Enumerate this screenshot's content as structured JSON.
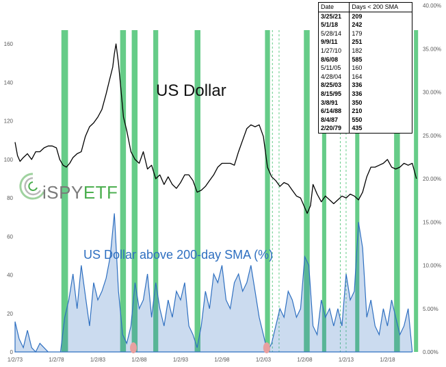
{
  "chart_data": [
    {
      "type": "line",
      "title": "US Dollar",
      "series": [
        {
          "name": "US Dollar",
          "x": [
            1973.0,
            1973.3,
            1973.6,
            1974.0,
            1974.5,
            1975.0,
            1975.5,
            1976.0,
            1976.5,
            1977.0,
            1977.5,
            1978.0,
            1978.4,
            1978.8,
            1979.2,
            1979.6,
            1980.0,
            1980.5,
            1981.0,
            1981.5,
            1982.0,
            1982.5,
            1983.0,
            1983.5,
            1984.0,
            1984.4,
            1984.8,
            1985.0,
            1985.2,
            1985.5,
            1985.8,
            1986.1,
            1986.5,
            1987.0,
            1987.5,
            1988.0,
            1988.5,
            1989.0,
            1989.5,
            1990.0,
            1990.5,
            1991.0,
            1991.5,
            1992.0,
            1992.5,
            1993.0,
            1993.5,
            1994.0,
            1994.5,
            1995.0,
            1995.5,
            1996.0,
            1996.5,
            1997.0,
            1997.5,
            1998.0,
            1998.5,
            1999.0,
            1999.5,
            2000.0,
            2000.5,
            2001.0,
            2001.5,
            2002.0,
            2002.5,
            2003.0,
            2003.5,
            2004.0,
            2004.5,
            2005.0,
            2005.5,
            2006.0,
            2006.5,
            2007.0,
            2007.5,
            2008.0,
            2008.3,
            2008.7,
            2009.0,
            2009.5,
            2010.0,
            2010.5,
            2011.0,
            2011.5,
            2012.0,
            2012.5,
            2013.0,
            2013.5,
            2014.0,
            2014.5,
            2015.0,
            2015.5,
            2016.0,
            2016.5,
            2017.0,
            2017.5,
            2018.0,
            2018.5,
            2019.0,
            2019.5,
            2020.0,
            2020.5,
            2021.0,
            2021.5
          ],
          "y": [
            109,
            102,
            99,
            101,
            103,
            100,
            104,
            104,
            106,
            107,
            107,
            106,
            100,
            97,
            96,
            98,
            101,
            103,
            104,
            112,
            117,
            119,
            122,
            126,
            134,
            141,
            148,
            155,
            160,
            150,
            136,
            122,
            115,
            104,
            100,
            98,
            104,
            95,
            97,
            90,
            92,
            87,
            91,
            87,
            85,
            88,
            92,
            92,
            89,
            83,
            84,
            86,
            89,
            92,
            96,
            98,
            98,
            98,
            97,
            104,
            110,
            116,
            118,
            117,
            118,
            112,
            96,
            91,
            89,
            86,
            88,
            87,
            84,
            81,
            80,
            75,
            72,
            76,
            87,
            82,
            78,
            81,
            79,
            77,
            79,
            81,
            80,
            82,
            81,
            79,
            83,
            91,
            96,
            96,
            97,
            98,
            100,
            96,
            95,
            96,
            98,
            97,
            98,
            90
          ]
        }
      ],
      "ylim": [
        0,
        180
      ],
      "yticks": [
        "0",
        "20",
        "40",
        "60",
        "80",
        "100",
        "120",
        "140",
        "160"
      ]
    },
    {
      "type": "area",
      "title": "US Dollar above 200-day SMA (%)",
      "series": [
        {
          "name": "US Dollar above 200-day SMA (%)",
          "x": [
            1973.0,
            1973.5,
            1974.0,
            1974.5,
            1975.0,
            1975.5,
            1976.0,
            1976.5,
            1977.0,
            1977.5,
            1978.0,
            1978.5,
            1979.0,
            1979.5,
            1980.0,
            1980.5,
            1981.0,
            1981.5,
            1982.0,
            1982.5,
            1983.0,
            1983.5,
            1984.0,
            1984.5,
            1985.0,
            1985.5,
            1986.0,
            1986.5,
            1987.0,
            1987.5,
            1988.0,
            1988.5,
            1989.0,
            1989.5,
            1990.0,
            1990.5,
            1991.0,
            1991.5,
            1992.0,
            1992.5,
            1993.0,
            1993.5,
            1994.0,
            1994.5,
            1995.0,
            1995.5,
            1996.0,
            1996.5,
            1997.0,
            1997.5,
            1998.0,
            1998.5,
            1999.0,
            1999.5,
            2000.0,
            2000.5,
            2001.0,
            2001.5,
            2002.0,
            2002.5,
            2003.0,
            2003.5,
            2004.0,
            2004.5,
            2005.0,
            2005.5,
            2006.0,
            2006.5,
            2007.0,
            2007.5,
            2008.0,
            2008.5,
            2009.0,
            2009.5,
            2010.0,
            2010.5,
            2011.0,
            2011.5,
            2012.0,
            2012.5,
            2013.0,
            2013.5,
            2014.0,
            2014.5,
            2015.0,
            2015.5,
            2016.0,
            2016.5,
            2017.0,
            2017.5,
            2018.0,
            2018.5,
            2019.0,
            2019.5,
            2020.0,
            2020.5,
            2021.0
          ],
          "y": [
            3.5,
            1.5,
            0.5,
            2.5,
            0.5,
            0,
            1,
            0.5,
            0,
            0,
            0,
            0,
            4,
            6,
            9,
            5,
            10,
            6.5,
            3,
            8,
            6,
            7,
            8.5,
            11,
            16,
            7,
            2,
            1,
            3,
            8,
            5,
            6,
            9,
            4,
            8,
            5,
            3,
            6,
            4,
            7,
            6,
            8,
            3,
            2,
            0.5,
            3,
            7,
            5,
            9,
            8,
            10,
            6,
            5,
            8,
            9,
            7,
            8,
            10,
            7,
            4,
            2,
            0,
            1,
            3,
            5,
            4,
            7,
            6,
            4,
            5,
            11,
            10,
            3,
            2,
            6,
            4,
            5,
            3,
            5,
            3,
            9,
            6,
            7,
            15,
            12,
            4,
            6,
            3,
            2,
            5,
            3,
            6,
            4,
            2,
            3,
            5,
            0
          ]
        }
      ],
      "ylim": [
        0,
        0.4
      ],
      "yticks": [
        "0.00%",
        "5.00%",
        "10.00%",
        "15.00%",
        "20.00%",
        "25.00%",
        "30.00%",
        "35.00%",
        "40.00%"
      ]
    }
  ],
  "x_axis": {
    "ticks": [
      "1/2/73",
      "1/2/78",
      "1/2/83",
      "1/2/88",
      "1/2/93",
      "1/2/98",
      "1/2/03",
      "1/2/08",
      "1/2/13",
      "1/2/18"
    ]
  },
  "shaded_periods": {
    "color": "#66cc88",
    "bands": [
      [
        1978.6,
        1979.4
      ],
      [
        1985.7,
        1986.4
      ],
      [
        1987.1,
        1987.8
      ],
      [
        1989.7,
        1990.3
      ],
      [
        1994.7,
        1995.4
      ],
      [
        2003.2,
        2003.8
      ],
      [
        2007.9,
        2008.6
      ],
      [
        2010.1,
        2010.6
      ],
      [
        2014.1,
        2014.6
      ],
      [
        2018.8,
        2019.5
      ],
      [
        2021.2,
        2021.7
      ]
    ],
    "dashed_lines": [
      2004.1,
      2004.9,
      2012.3,
      2013.0
    ]
  },
  "red_markers": [
    1987.3,
    2003.4
  ],
  "table": {
    "headers": [
      "Date",
      "Days < 200 SMA"
    ],
    "rows": [
      {
        "date": "3/25/21",
        "days": "209",
        "bold": true
      },
      {
        "date": "5/1/18",
        "days": "242",
        "bold": true
      },
      {
        "date": "5/28/14",
        "days": "179",
        "bold": false
      },
      {
        "date": "9/9/11",
        "days": "251",
        "bold": true
      },
      {
        "date": "1/27/10",
        "days": "182",
        "bold": false
      },
      {
        "date": "8/6/08",
        "days": "585",
        "bold": true
      },
      {
        "date": "5/11/05",
        "days": "160",
        "bold": false
      },
      {
        "date": "4/28/04",
        "days": "164",
        "bold": false
      },
      {
        "date": "8/25/03",
        "days": "336",
        "bold": true
      },
      {
        "date": "8/15/95",
        "days": "336",
        "bold": true
      },
      {
        "date": "3/8/91",
        "days": "350",
        "bold": true
      },
      {
        "date": "6/14/88",
        "days": "210",
        "bold": true
      },
      {
        "date": "8/4/87",
        "days": "550",
        "bold": true
      },
      {
        "date": "2/20/79",
        "days": "435",
        "bold": true
      }
    ]
  },
  "logo": {
    "part1": "iSPY",
    "part2": "ETF"
  },
  "colors": {
    "dollar_line": "#000000",
    "sma_area": "#2e6fc0",
    "band": "#66cc88",
    "marker": "#e8a0a0",
    "title_blue": "#2e6fc0"
  }
}
